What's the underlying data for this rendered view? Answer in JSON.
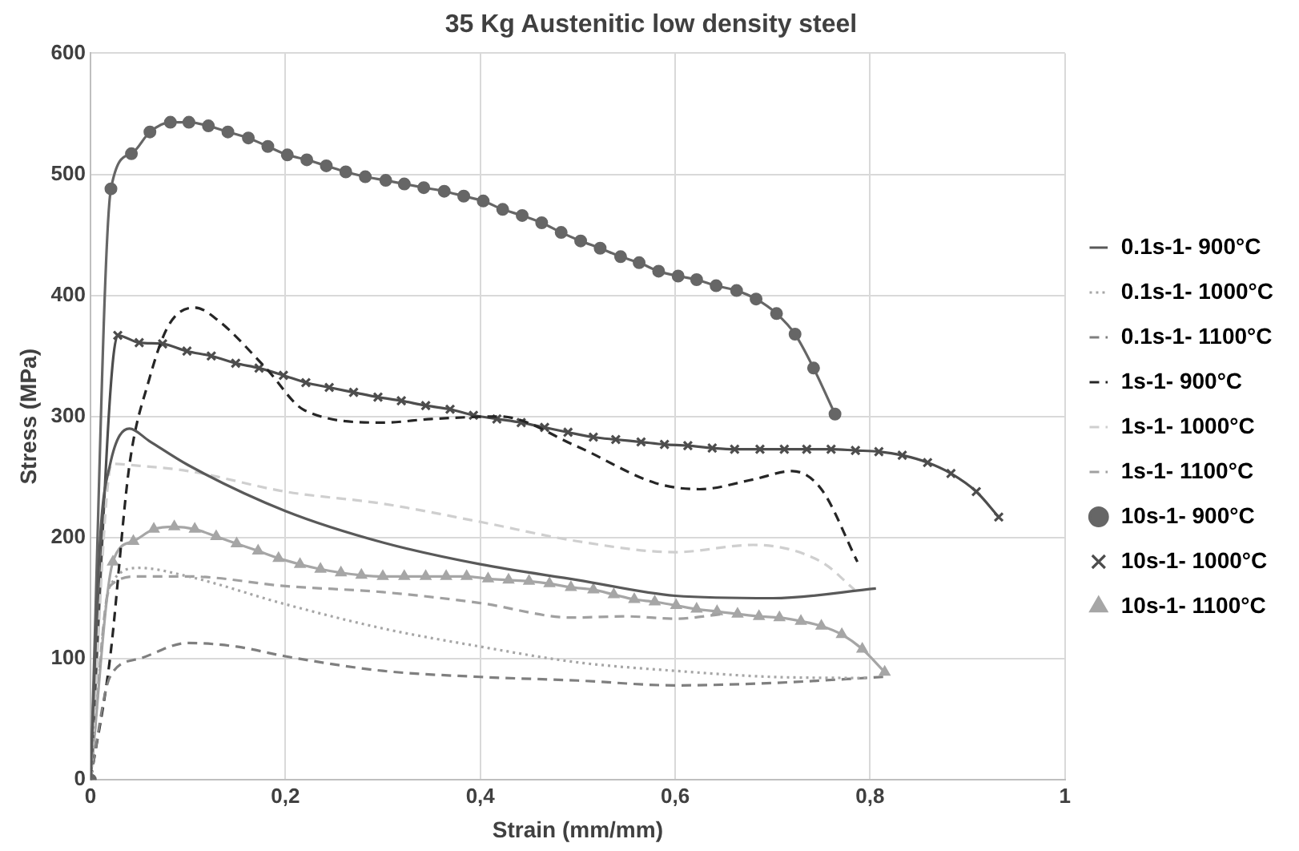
{
  "chart_data": {
    "type": "line",
    "title": "35 Kg Austenitic low density steel",
    "xlabel": "Strain (mm/mm)",
    "ylabel": "Stress (MPa)",
    "xlim": [
      0,
      1
    ],
    "xticks": [
      0,
      {
        "value": 0.2,
        "label": "0,2"
      },
      {
        "value": 0.4,
        "label": "0,4"
      },
      {
        "value": 0.6,
        "label": "0,6"
      },
      {
        "value": 0.8,
        "label": "0,8"
      },
      1
    ],
    "ylim": [
      0,
      600
    ],
    "yticks": [
      0,
      100,
      200,
      300,
      400,
      500,
      600
    ],
    "grid": true,
    "legend": "right",
    "series": [
      {
        "name": "0.1s-1- 900°C",
        "color": "#595959",
        "line_style": "solid",
        "marker": "none",
        "x": [
          0,
          0.01,
          0.02,
          0.04,
          0.06,
          0.1,
          0.2,
          0.3,
          0.4,
          0.5,
          0.6,
          0.7,
          0.806
        ],
        "values": [
          0,
          200,
          260,
          290,
          280,
          260,
          222,
          196,
          178,
          165,
          152,
          150,
          158
        ]
      },
      {
        "name": "0.1s-1- 1000°C",
        "color": "#a6a6a6",
        "line_style": "dotted",
        "marker": "none",
        "x": [
          0,
          0.02,
          0.05,
          0.1,
          0.2,
          0.3,
          0.4,
          0.5,
          0.6,
          0.7,
          0.8
        ],
        "values": [
          0,
          160,
          175,
          168,
          145,
          125,
          110,
          97,
          90,
          85,
          84
        ]
      },
      {
        "name": "0.1s-1- 1100°C",
        "color": "#7f7f7f",
        "line_style": "dashed",
        "marker": "none",
        "x": [
          0,
          0.02,
          0.05,
          0.1,
          0.15,
          0.2,
          0.3,
          0.4,
          0.5,
          0.6,
          0.7,
          0.814
        ],
        "values": [
          0,
          85,
          100,
          113,
          110,
          102,
          90,
          85,
          82,
          78,
          80,
          85
        ]
      },
      {
        "name": "1s-1- 900°C",
        "color": "#262626",
        "line_style": "dashed",
        "marker": "none",
        "x": [
          0,
          0.02,
          0.04,
          0.06,
          0.08,
          0.107,
          0.13,
          0.18,
          0.22,
          0.3,
          0.35,
          0.42,
          0.5,
          0.58,
          0.625,
          0.68,
          0.72,
          0.75,
          0.787
        ],
        "values": [
          0,
          100,
          260,
          330,
          375,
          390,
          380,
          340,
          305,
          295,
          298,
          300,
          275,
          245,
          240,
          248,
          255,
          240,
          180
        ]
      },
      {
        "name": "1s-1- 1000°C",
        "color": "#cfcfcf",
        "line_style": "dashed",
        "marker": "none",
        "x": [
          0,
          0.022,
          0.04,
          0.1,
          0.2,
          0.3,
          0.4,
          0.5,
          0.6,
          0.68,
          0.75,
          0.784
        ],
        "values": [
          0,
          261,
          260,
          255,
          238,
          228,
          213,
          197,
          188,
          194,
          180,
          157
        ]
      },
      {
        "name": "1s-1- 1100°C",
        "color": "#a0a0a0",
        "line_style": "dashed",
        "marker": "none",
        "x": [
          0,
          0.02,
          0.05,
          0.1,
          0.2,
          0.3,
          0.4,
          0.494,
          0.55,
          0.6,
          0.65
        ],
        "values": [
          0,
          160,
          168,
          168,
          160,
          155,
          146,
          134,
          135,
          133,
          137
        ]
      },
      {
        "name": "10s-1- 900°C",
        "color": "#666666",
        "line_style": "solid",
        "marker": "circle",
        "x": [
          0,
          0.021,
          0.042,
          0.061,
          0.082,
          0.101,
          0.121,
          0.141,
          0.162,
          0.182,
          0.202,
          0.222,
          0.242,
          0.262,
          0.282,
          0.303,
          0.322,
          0.342,
          0.363,
          0.383,
          0.403,
          0.423,
          0.443,
          0.463,
          0.483,
          0.503,
          0.523,
          0.544,
          0.563,
          0.583,
          0.603,
          0.622,
          0.642,
          0.663,
          0.683,
          0.704,
          0.723,
          0.742,
          0.764
        ],
        "values": [
          0,
          488,
          517,
          535,
          543,
          543,
          540,
          535,
          530,
          523,
          516,
          512,
          507,
          502,
          498,
          495,
          492,
          489,
          486,
          482,
          478,
          471,
          466,
          460,
          452,
          445,
          439,
          432,
          427,
          420,
          416,
          413,
          408,
          404,
          397,
          385,
          368,
          340,
          302
        ]
      },
      {
        "name": "10s-1- 1000°C",
        "color": "#4d4d4d",
        "line_style": "solid",
        "marker": "cross",
        "x": [
          0,
          0.028,
          0.05,
          0.074,
          0.099,
          0.124,
          0.149,
          0.173,
          0.198,
          0.221,
          0.245,
          0.27,
          0.295,
          0.319,
          0.344,
          0.369,
          0.393,
          0.417,
          0.442,
          0.466,
          0.49,
          0.516,
          0.539,
          0.565,
          0.589,
          0.613,
          0.638,
          0.661,
          0.687,
          0.712,
          0.735,
          0.76,
          0.785,
          0.809,
          0.833,
          0.859,
          0.883,
          0.909,
          0.932
        ],
        "values": [
          0,
          367,
          361,
          360,
          354,
          350,
          344,
          340,
          334,
          328,
          324,
          320,
          316,
          313,
          309,
          306,
          301,
          298,
          295,
          291,
          287,
          283,
          281,
          279,
          277,
          276,
          274,
          273,
          273,
          273,
          273,
          273,
          272,
          271,
          268,
          262,
          253,
          238,
          217
        ]
      },
      {
        "name": "10s-1- 1100°C",
        "color": "#a6a6a6",
        "line_style": "solid",
        "marker": "triangle",
        "x": [
          0,
          0.023,
          0.044,
          0.065,
          0.086,
          0.107,
          0.129,
          0.15,
          0.172,
          0.193,
          0.215,
          0.236,
          0.257,
          0.278,
          0.3,
          0.322,
          0.344,
          0.365,
          0.386,
          0.408,
          0.429,
          0.45,
          0.471,
          0.493,
          0.516,
          0.537,
          0.558,
          0.579,
          0.601,
          0.622,
          0.643,
          0.664,
          0.686,
          0.707,
          0.729,
          0.75,
          0.771,
          0.792,
          0.815
        ],
        "values": [
          0,
          180,
          197,
          207,
          209,
          207,
          201,
          195,
          189,
          183,
          178,
          174,
          171,
          169,
          168,
          168,
          168,
          168,
          168,
          166,
          165,
          164,
          162,
          159,
          157,
          153,
          149,
          147,
          144,
          141,
          139,
          137,
          135,
          134,
          131,
          127,
          120,
          108,
          89
        ]
      }
    ]
  }
}
